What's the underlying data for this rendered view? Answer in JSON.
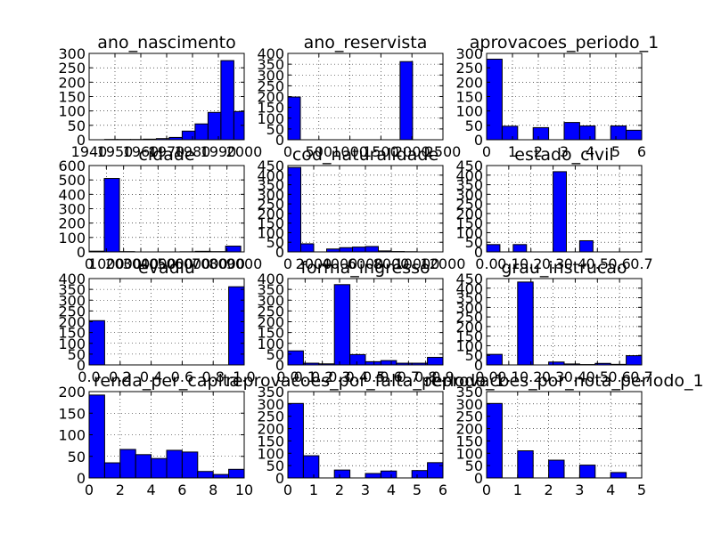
{
  "colors": {
    "bar_fill": "#0000ff",
    "bar_edge": "#000000",
    "grid": "#000000",
    "background": "#ffffff"
  },
  "chart_data": [
    {
      "type": "bar",
      "title": "ano_nascimento",
      "xlim": [
        1940,
        2000
      ],
      "ylim": [
        0,
        300
      ],
      "xticks": [
        "1940",
        "1950",
        "1960",
        "1970",
        "1980",
        "1990",
        "2000"
      ],
      "yticks": [
        "0",
        "50",
        "100",
        "150",
        "200",
        "250",
        "300"
      ],
      "bins": [
        [
          1946,
          1951
        ],
        [
          1951,
          1956
        ],
        [
          1956,
          1961
        ],
        [
          1961,
          1966
        ],
        [
          1966,
          1971
        ],
        [
          1971,
          1976
        ],
        [
          1976,
          1981
        ],
        [
          1981,
          1986
        ],
        [
          1986,
          1991
        ],
        [
          1991,
          1996
        ],
        [
          1996,
          2000
        ]
      ],
      "values": [
        1,
        1,
        1,
        2,
        4,
        8,
        30,
        55,
        95,
        275,
        98
      ],
      "grid": true
    },
    {
      "type": "bar",
      "title": "ano_reservista",
      "xlim": [
        0,
        2500
      ],
      "ylim": [
        0,
        400
      ],
      "xticks": [
        "0",
        "500",
        "1000",
        "1500",
        "2000",
        "2500"
      ],
      "yticks": [
        "0",
        "50",
        "100",
        "150",
        "200",
        "250",
        "300",
        "350",
        "400"
      ],
      "bins": [
        [
          0,
          201
        ],
        [
          201,
          402
        ],
        [
          402,
          603
        ],
        [
          603,
          804
        ],
        [
          804,
          1005
        ],
        [
          1005,
          1206
        ],
        [
          1206,
          1407
        ],
        [
          1407,
          1608
        ],
        [
          1608,
          1809
        ],
        [
          1809,
          2010
        ]
      ],
      "values": [
        198,
        0,
        0,
        0,
        0,
        0,
        0,
        0,
        0,
        362
      ],
      "grid": true
    },
    {
      "type": "bar",
      "title": "aprovacoes_periodo_1",
      "xlim": [
        0,
        6
      ],
      "ylim": [
        0,
        300
      ],
      "xticks": [
        "0",
        "1",
        "2",
        "3",
        "4",
        "5",
        "6"
      ],
      "yticks": [
        "0",
        "50",
        "100",
        "150",
        "200",
        "250",
        "300"
      ],
      "bins": [
        [
          0,
          0.6
        ],
        [
          0.6,
          1.2
        ],
        [
          1.2,
          1.8
        ],
        [
          1.8,
          2.4
        ],
        [
          2.4,
          3.0
        ],
        [
          3.0,
          3.6
        ],
        [
          3.6,
          4.2
        ],
        [
          4.2,
          4.8
        ],
        [
          4.8,
          5.4
        ],
        [
          5.4,
          6.0
        ]
      ],
      "values": [
        280,
        47,
        0,
        42,
        0,
        60,
        48,
        0,
        48,
        33
      ],
      "grid": true
    },
    {
      "type": "bar",
      "title": "cidade",
      "xlim": [
        0,
        9000
      ],
      "ylim": [
        0,
        600
      ],
      "xticks": [
        "0",
        "1000",
        "2000",
        "3000",
        "4000",
        "5000",
        "6000",
        "7000",
        "8000",
        "9000"
      ],
      "yticks": [
        "0",
        "100",
        "200",
        "300",
        "400",
        "500",
        "600"
      ],
      "bins": [
        [
          0,
          880
        ],
        [
          880,
          1760
        ],
        [
          1760,
          2640
        ],
        [
          2640,
          3520
        ],
        [
          3520,
          4400
        ],
        [
          4400,
          5280
        ],
        [
          5280,
          6160
        ],
        [
          6160,
          7040
        ],
        [
          7040,
          7920
        ],
        [
          7920,
          8800
        ]
      ],
      "values": [
        5,
        510,
        2,
        0,
        0,
        0,
        1,
        4,
        2,
        40
      ],
      "grid": true
    },
    {
      "type": "bar",
      "title": "cod_naturalidade",
      "xlim": [
        0,
        12000
      ],
      "ylim": [
        0,
        450
      ],
      "xticks": [
        "0",
        "2000",
        "4000",
        "6000",
        "8000",
        "10000",
        "12000"
      ],
      "yticks": [
        "0",
        "50",
        "100",
        "150",
        "200",
        "250",
        "300",
        "350",
        "400",
        "450"
      ],
      "bins": [
        [
          0,
          1000
        ],
        [
          1000,
          2000
        ],
        [
          2000,
          3000
        ],
        [
          3000,
          4000
        ],
        [
          4000,
          5000
        ],
        [
          5000,
          6000
        ],
        [
          6000,
          7000
        ],
        [
          7000,
          8000
        ],
        [
          8000,
          9000
        ],
        [
          9000,
          10000
        ]
      ],
      "values": [
        440,
        42,
        0,
        15,
        22,
        25,
        28,
        5,
        2,
        1
      ],
      "grid": true
    },
    {
      "type": "bar",
      "title": "estado_civil",
      "xlim": [
        0,
        0.7
      ],
      "ylim": [
        0,
        450
      ],
      "xticks": [
        "0.0",
        "0.1",
        "0.2",
        "0.3",
        "0.4",
        "0.5",
        "0.6",
        "0.7"
      ],
      "yticks": [
        "0",
        "50",
        "100",
        "150",
        "200",
        "250",
        "300",
        "350",
        "400",
        "450"
      ],
      "bins": [
        [
          0,
          0.06
        ],
        [
          0.06,
          0.12
        ],
        [
          0.12,
          0.18
        ],
        [
          0.18,
          0.24
        ],
        [
          0.24,
          0.3
        ],
        [
          0.3,
          0.36
        ],
        [
          0.36,
          0.42
        ],
        [
          0.42,
          0.48
        ],
        [
          0.48,
          0.54
        ],
        [
          0.54,
          0.6
        ]
      ],
      "values": [
        38,
        0,
        38,
        0,
        0,
        418,
        0,
        58,
        0,
        0
      ],
      "grid": true
    },
    {
      "type": "bar",
      "title": "evadiu",
      "xlim": [
        0,
        1
      ],
      "ylim": [
        0,
        400
      ],
      "xticks": [
        "0.0",
        "0.2",
        "0.4",
        "0.6",
        "0.8",
        "1.0"
      ],
      "yticks": [
        "0",
        "50",
        "100",
        "150",
        "200",
        "250",
        "300",
        "350",
        "400"
      ],
      "bins": [
        [
          0,
          0.1
        ],
        [
          0.1,
          0.2
        ],
        [
          0.2,
          0.3
        ],
        [
          0.3,
          0.4
        ],
        [
          0.4,
          0.5
        ],
        [
          0.5,
          0.6
        ],
        [
          0.6,
          0.7
        ],
        [
          0.7,
          0.8
        ],
        [
          0.8,
          0.9
        ],
        [
          0.9,
          1.0
        ]
      ],
      "values": [
        205,
        0,
        0,
        0,
        0,
        0,
        0,
        0,
        0,
        362
      ],
      "grid": true
    },
    {
      "type": "bar",
      "title": "forma_ingresso",
      "xlim": [
        0,
        0.9
      ],
      "ylim": [
        0,
        400
      ],
      "xticks": [
        "0.0",
        "0.1",
        "0.2",
        "0.3",
        "0.4",
        "0.5",
        "0.6",
        "0.7",
        "0.8",
        "0.9"
      ],
      "yticks": [
        "0",
        "50",
        "100",
        "150",
        "200",
        "250",
        "300",
        "350",
        "400"
      ],
      "bins": [
        [
          0,
          0.09
        ],
        [
          0.09,
          0.18
        ],
        [
          0.18,
          0.27
        ],
        [
          0.27,
          0.36
        ],
        [
          0.36,
          0.45
        ],
        [
          0.45,
          0.54
        ],
        [
          0.54,
          0.63
        ],
        [
          0.63,
          0.72
        ],
        [
          0.72,
          0.81
        ],
        [
          0.81,
          0.9
        ]
      ],
      "values": [
        65,
        8,
        5,
        372,
        48,
        15,
        20,
        8,
        8,
        35
      ],
      "grid": true
    },
    {
      "type": "bar",
      "title": "grau_instrucao",
      "xlim": [
        0,
        0.7
      ],
      "ylim": [
        0,
        450
      ],
      "xticks": [
        "0.0",
        "0.1",
        "0.2",
        "0.3",
        "0.4",
        "0.5",
        "0.6",
        "0.7"
      ],
      "yticks": [
        "0",
        "50",
        "100",
        "150",
        "200",
        "250",
        "300",
        "350",
        "400",
        "450"
      ],
      "bins": [
        [
          0,
          0.07
        ],
        [
          0.07,
          0.14
        ],
        [
          0.14,
          0.21
        ],
        [
          0.21,
          0.28
        ],
        [
          0.28,
          0.35
        ],
        [
          0.35,
          0.42
        ],
        [
          0.42,
          0.49
        ],
        [
          0.49,
          0.56
        ],
        [
          0.56,
          0.63
        ],
        [
          0.63,
          0.7
        ]
      ],
      "values": [
        55,
        0,
        432,
        0,
        15,
        5,
        2,
        8,
        3,
        48
      ],
      "grid": true
    },
    {
      "type": "bar",
      "title": "renda_per_capita",
      "xlim": [
        0,
        10
      ],
      "ylim": [
        0,
        200
      ],
      "xticks": [
        "0",
        "2",
        "4",
        "6",
        "8",
        "10"
      ],
      "yticks": [
        "0",
        "50",
        "100",
        "150",
        "200"
      ],
      "bins": [
        [
          0,
          1
        ],
        [
          1,
          2
        ],
        [
          2,
          3
        ],
        [
          3,
          4
        ],
        [
          4,
          5
        ],
        [
          5,
          6
        ],
        [
          6,
          7
        ],
        [
          7,
          8
        ],
        [
          8,
          9
        ],
        [
          9,
          10
        ]
      ],
      "values": [
        192,
        35,
        66,
        54,
        45,
        64,
        60,
        15,
        8,
        20
      ],
      "grid": true
    },
    {
      "type": "bar",
      "title": "reprovacoes_por_falta_periodo_1",
      "xlim": [
        0,
        6
      ],
      "ylim": [
        0,
        350
      ],
      "xticks": [
        "0",
        "1",
        "2",
        "3",
        "4",
        "5",
        "6"
      ],
      "yticks": [
        "0",
        "50",
        "100",
        "150",
        "200",
        "250",
        "300",
        "350"
      ],
      "bins": [
        [
          0,
          0.6
        ],
        [
          0.6,
          1.2
        ],
        [
          1.2,
          1.8
        ],
        [
          1.8,
          2.4
        ],
        [
          2.4,
          3.0
        ],
        [
          3.0,
          3.6
        ],
        [
          3.6,
          4.2
        ],
        [
          4.2,
          4.8
        ],
        [
          4.8,
          5.4
        ],
        [
          5.4,
          6.0
        ]
      ],
      "values": [
        302,
        90,
        0,
        32,
        0,
        18,
        28,
        0,
        30,
        62
      ],
      "grid": true
    },
    {
      "type": "bar",
      "title": "reprovacoes_por_nota_periodo_1",
      "xlim": [
        0,
        5
      ],
      "ylim": [
        0,
        350
      ],
      "xticks": [
        "0",
        "1",
        "2",
        "3",
        "4",
        "5"
      ],
      "yticks": [
        "0",
        "50",
        "100",
        "150",
        "200",
        "250",
        "300",
        "350"
      ],
      "bins": [
        [
          0,
          0.5
        ],
        [
          0.5,
          1.0
        ],
        [
          1.0,
          1.5
        ],
        [
          1.5,
          2.0
        ],
        [
          2.0,
          2.5
        ],
        [
          2.5,
          3.0
        ],
        [
          3.0,
          3.5
        ],
        [
          3.5,
          4.0
        ],
        [
          4.0,
          4.5
        ],
        [
          4.5,
          5.0
        ]
      ],
      "values": [
        302,
        0,
        110,
        0,
        72,
        0,
        52,
        0,
        22,
        0
      ],
      "grid": true
    }
  ]
}
